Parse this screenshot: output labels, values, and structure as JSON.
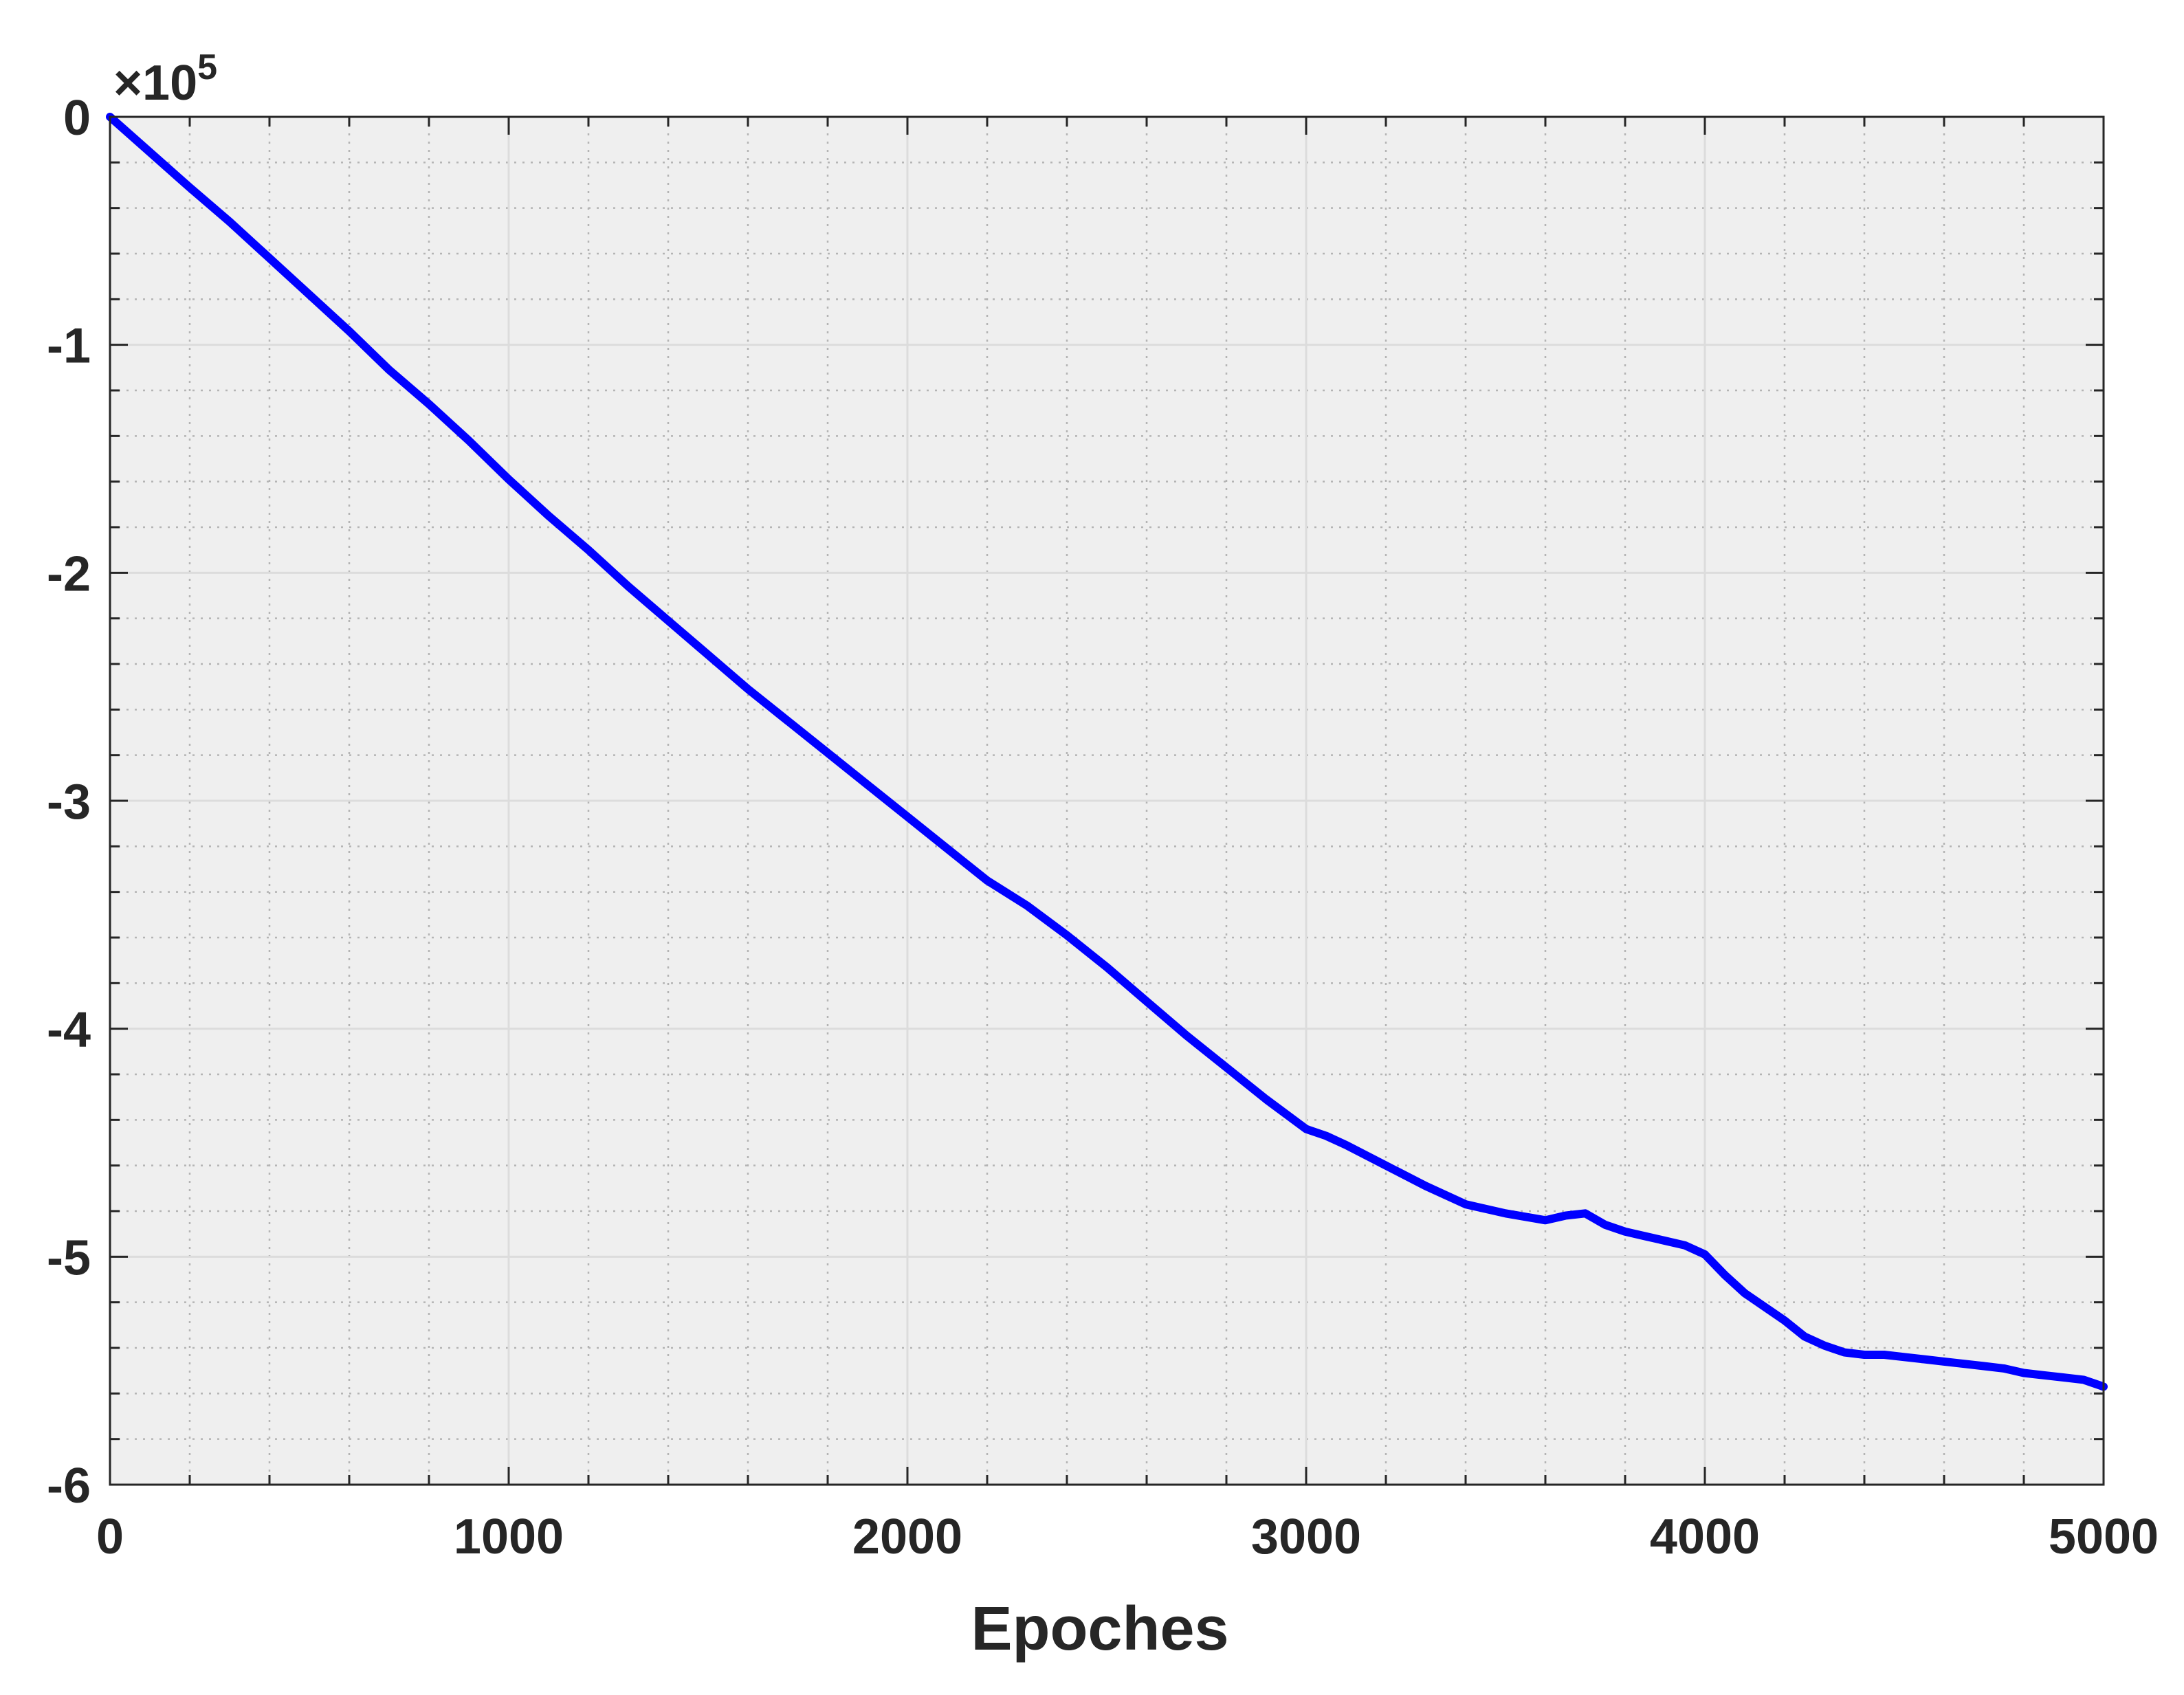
{
  "chart_data": {
    "type": "line",
    "title": "",
    "xlabel": "Epoches",
    "ylabel": "",
    "xlim": [
      0,
      5000
    ],
    "ylim": [
      -600000,
      0
    ],
    "x_ticks": [
      0,
      1000,
      2000,
      3000,
      4000,
      5000
    ],
    "y_ticks": [
      0,
      -1,
      -2,
      -3,
      -4,
      -5,
      -6
    ],
    "y_exponent_label": {
      "prefix": "×10",
      "power": "5"
    },
    "grid": true,
    "minor_grid": true,
    "colors": {
      "line": "#0000ff",
      "plot_bg": "#efefef",
      "axis": "#262626"
    },
    "series": [
      {
        "x": [
          0,
          100,
          200,
          300,
          400,
          500,
          600,
          700,
          800,
          900,
          1000,
          1100,
          1200,
          1300,
          1400,
          1500,
          1600,
          1700,
          1800,
          1900,
          2000,
          2100,
          2200,
          2300,
          2400,
          2500,
          2600,
          2700,
          2800,
          2900,
          3000,
          3050,
          3100,
          3200,
          3300,
          3400,
          3500,
          3600,
          3650,
          3700,
          3750,
          3800,
          3850,
          3900,
          3950,
          4000,
          4050,
          4100,
          4200,
          4250,
          4300,
          4350,
          4400,
          4450,
          4500,
          4550,
          4600,
          4650,
          4700,
          4750,
          4800,
          4850,
          4900,
          4950,
          5000
        ],
        "y": [
          0,
          -15500,
          -31000,
          -46000,
          -62000,
          -78000,
          -94000,
          -111000,
          -126000,
          -142000,
          -159000,
          -175000,
          -190000,
          -206000,
          -221000,
          -236000,
          -251000,
          -265000,
          -279000,
          -293000,
          -307000,
          -321000,
          -335000,
          -346000,
          -359000,
          -373000,
          -388000,
          -403000,
          -417000,
          -431000,
          -444000,
          -447000,
          -451000,
          -460000,
          -469000,
          -477000,
          -481000,
          -484000,
          -482000,
          -481000,
          -486000,
          -489000,
          -491000,
          -493000,
          -495000,
          -499000,
          -508000,
          -516000,
          -528000,
          -535000,
          -539000,
          -542000,
          -543000,
          -543000,
          -544000,
          -545000,
          -546000,
          -547000,
          -548000,
          -549000,
          -551000,
          -552000,
          -553000,
          -554000,
          -557000
        ]
      }
    ]
  }
}
